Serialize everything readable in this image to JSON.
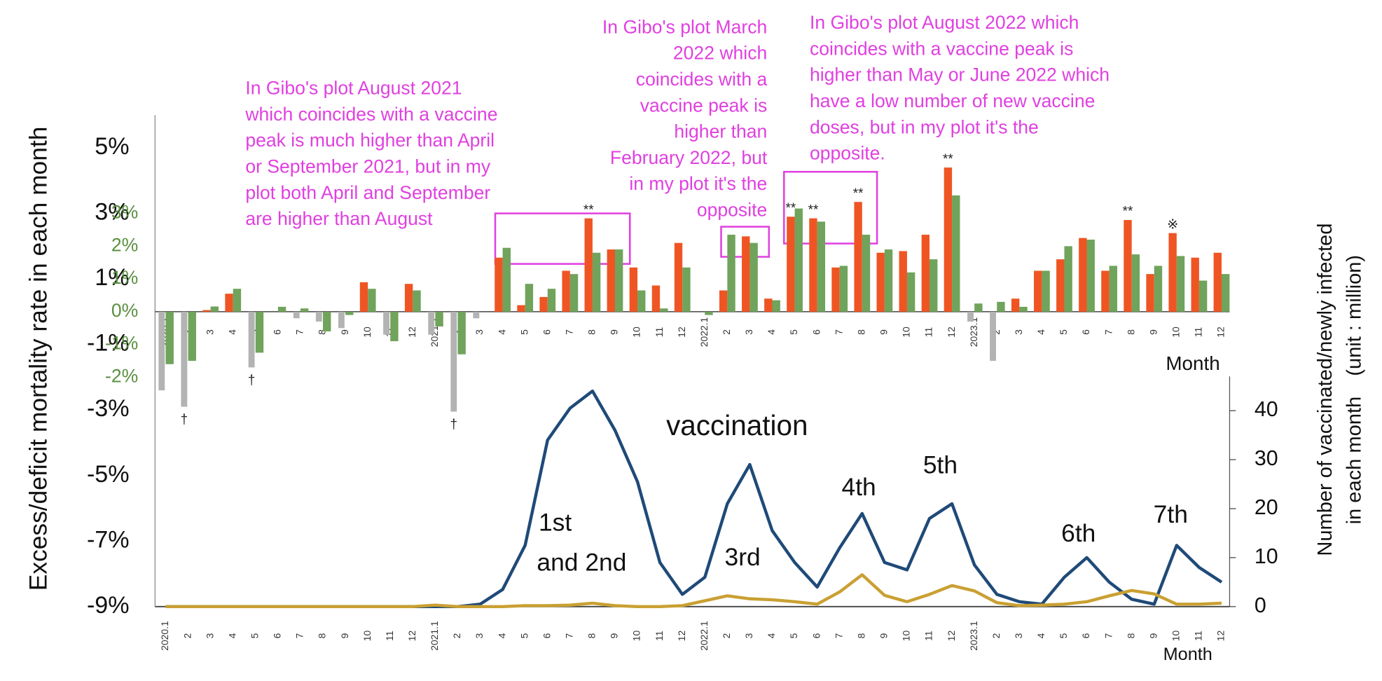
{
  "chart_data": [
    {
      "type": "bar",
      "categories": [
        "2020.1",
        "2",
        "3",
        "4",
        "5",
        "6",
        "7",
        "8",
        "9",
        "10",
        "11",
        "12",
        "2021.1",
        "2",
        "3",
        "4",
        "5",
        "6",
        "7",
        "8",
        "9",
        "10",
        "11",
        "12",
        "2022.1",
        "2",
        "3",
        "4",
        "5",
        "6",
        "7",
        "8",
        "9",
        "10",
        "11",
        "12",
        "2023.1",
        "2",
        "3",
        "4",
        "5",
        "6",
        "7",
        "8",
        "9",
        "10",
        "11",
        "12"
      ],
      "ylim": [
        -9,
        6
      ],
      "yticks": [
        {
          "value": 5,
          "label": "5%"
        },
        {
          "value": 3,
          "label": "3%"
        },
        {
          "value": 1,
          "label": "1%"
        },
        {
          "value": -1,
          "label": "-1%"
        },
        {
          "value": -3,
          "label": "-3%"
        },
        {
          "value": -5,
          "label": "-5%"
        },
        {
          "value": -7,
          "label": "-7%"
        },
        {
          "value": -9,
          "label": "-9%"
        }
      ],
      "y2lim": [
        -9,
        6
      ],
      "y2ticks": [
        {
          "value": 3,
          "label": "3%"
        },
        {
          "value": 2,
          "label": "2%"
        },
        {
          "value": 1,
          "label": "1%"
        },
        {
          "value": 0,
          "label": "0%"
        },
        {
          "value": -1,
          "label": "-1%"
        },
        {
          "value": -2,
          "label": "-2%"
        }
      ],
      "y2color": "#5a9040",
      "x_label": "Month",
      "y_label": "Excess/deficit mortality rate in each month",
      "series": [
        {
          "color": "#b3b3b3",
          "values": [
            -2.4,
            -2.9,
            null,
            null,
            -1.7,
            null,
            -0.2,
            -0.3,
            -0.5,
            null,
            -0.7,
            null,
            -0.7,
            -3.05,
            -0.2,
            null,
            null,
            null,
            null,
            null,
            null,
            null,
            null,
            null,
            null,
            null,
            null,
            null,
            null,
            null,
            null,
            null,
            null,
            null,
            null,
            null,
            -0.3,
            -1.5,
            null,
            null,
            null,
            null,
            null,
            null,
            null,
            null,
            null,
            null
          ],
          "marks": [
            null,
            "†",
            null,
            null,
            "†",
            null,
            null,
            null,
            null,
            null,
            null,
            null,
            null,
            "†",
            null,
            null,
            null,
            null,
            null,
            null,
            null,
            null,
            null,
            null,
            null,
            null,
            null,
            null,
            null,
            null,
            null,
            null,
            null,
            null,
            null,
            null,
            null,
            null,
            null,
            null,
            null,
            null,
            null,
            null,
            null,
            null,
            null,
            null
          ]
        },
        {
          "color": "#ef5523",
          "values": [
            null,
            null,
            0.05,
            0.55,
            null,
            null,
            null,
            null,
            null,
            0.9,
            null,
            0.85,
            null,
            null,
            null,
            1.65,
            0.2,
            0.45,
            1.25,
            2.85,
            1.9,
            1.35,
            0.8,
            2.1,
            null,
            0.65,
            2.3,
            0.4,
            2.9,
            2.85,
            1.35,
            3.35,
            1.8,
            1.85,
            2.35,
            4.4,
            null,
            null,
            0.4,
            1.25,
            1.6,
            2.25,
            1.25,
            2.8,
            1.15,
            2.4,
            1.65,
            1.8
          ],
          "marks": [
            null,
            null,
            null,
            null,
            null,
            null,
            null,
            null,
            null,
            null,
            null,
            null,
            null,
            null,
            null,
            null,
            null,
            null,
            null,
            "**",
            null,
            null,
            null,
            null,
            null,
            null,
            null,
            null,
            "**",
            "**",
            null,
            "**",
            null,
            null,
            null,
            "**",
            null,
            null,
            null,
            null,
            null,
            null,
            null,
            "**",
            null,
            "※",
            null,
            null
          ]
        },
        {
          "color": "#70a35b",
          "values": [
            -1.6,
            -1.5,
            0.16,
            0.7,
            -1.25,
            0.15,
            0.1,
            -0.6,
            -0.1,
            0.7,
            -0.9,
            0.65,
            -0.45,
            -1.3,
            null,
            1.95,
            0.85,
            0.7,
            1.15,
            1.8,
            1.9,
            0.65,
            0.1,
            1.35,
            -0.1,
            2.35,
            2.1,
            0.35,
            3.15,
            2.75,
            1.4,
            2.35,
            1.9,
            1.2,
            1.6,
            3.55,
            0.25,
            0.3,
            0.15,
            1.25,
            2.0,
            2.2,
            1.4,
            1.75,
            1.4,
            1.7,
            0.95,
            1.15
          ]
        }
      ],
      "annotation_color": "#e040e0",
      "annotations": [
        {
          "lines": [
            "In Gibo's plot August 2021",
            "which coincides with a vaccine",
            "peak is much higher than April",
            "or September 2021, but in my",
            "plot both April and September",
            "are higher than August"
          ]
        },
        {
          "lines": [
            "In Gibo's plot March",
            "2022 which",
            "coincides with a",
            "vaccine peak is",
            "higher than",
            "February 2022, but",
            "in my plot it's the",
            "opposite"
          ]
        },
        {
          "lines": [
            "In Gibo's plot August 2022 which",
            "coincides with a vaccine peak is",
            "higher than May or June 2022 which",
            "have a low number of new vaccine",
            "doses, but in my plot it's the",
            "opposite."
          ]
        }
      ]
    },
    {
      "type": "line",
      "categories": [
        "2020.1",
        "2",
        "3",
        "4",
        "5",
        "6",
        "7",
        "8",
        "9",
        "10",
        "11",
        "12",
        "2021.1",
        "2",
        "3",
        "4",
        "5",
        "6",
        "7",
        "8",
        "9",
        "10",
        "11",
        "12",
        "2022.1",
        "2",
        "3",
        "4",
        "5",
        "6",
        "7",
        "8",
        "9",
        "10",
        "11",
        "12",
        "2023.1",
        "2",
        "3",
        "4",
        "5",
        "6",
        "7",
        "8",
        "9",
        "10",
        "11",
        "12"
      ],
      "ylim": [
        0,
        47
      ],
      "yticks": [
        0,
        10,
        20,
        30,
        40
      ],
      "x_label": "Month",
      "y_label": [
        "Number of vaccinated/newly infected",
        "in each month　(unit : million)"
      ],
      "series": [
        {
          "color": "#1f4a78",
          "values": [
            0,
            0,
            0,
            0,
            0,
            0,
            0,
            0,
            0,
            0,
            0,
            0,
            0,
            0,
            0.5,
            3.5,
            12.5,
            34,
            40.5,
            44,
            36,
            25.5,
            9,
            2.5,
            6,
            21,
            29,
            15.5,
            9,
            4,
            12,
            19,
            9,
            7.5,
            18,
            21,
            8.5,
            2.5,
            1,
            0.5,
            6,
            10,
            5,
            1.5,
            0.5,
            12.5,
            8,
            5
          ]
        },
        {
          "color": "#c9a032",
          "values": [
            0,
            0,
            0,
            0,
            0,
            0,
            0,
            0,
            0,
            0,
            0,
            0,
            0.3,
            0,
            0,
            0,
            0.2,
            0.2,
            0.3,
            0.7,
            0.2,
            0,
            0,
            0.2,
            1.2,
            2.2,
            1.6,
            1.4,
            1,
            0.5,
            3,
            6.5,
            2.3,
            1,
            2.5,
            4.3,
            3.2,
            0.8,
            0.2,
            0.3,
            0.5,
            1,
            2.2,
            3.3,
            2.6,
            0.5,
            0.5,
            0.7
          ]
        }
      ],
      "annotations": [
        {
          "lines": [
            "vaccination"
          ]
        },
        {
          "lines": [
            "1st",
            "and 2nd"
          ]
        },
        {
          "lines": [
            "3rd"
          ]
        },
        {
          "lines": [
            "4th"
          ]
        },
        {
          "lines": [
            "5th"
          ]
        },
        {
          "lines": [
            "6th"
          ]
        },
        {
          "lines": [
            "7th"
          ]
        }
      ]
    }
  ]
}
